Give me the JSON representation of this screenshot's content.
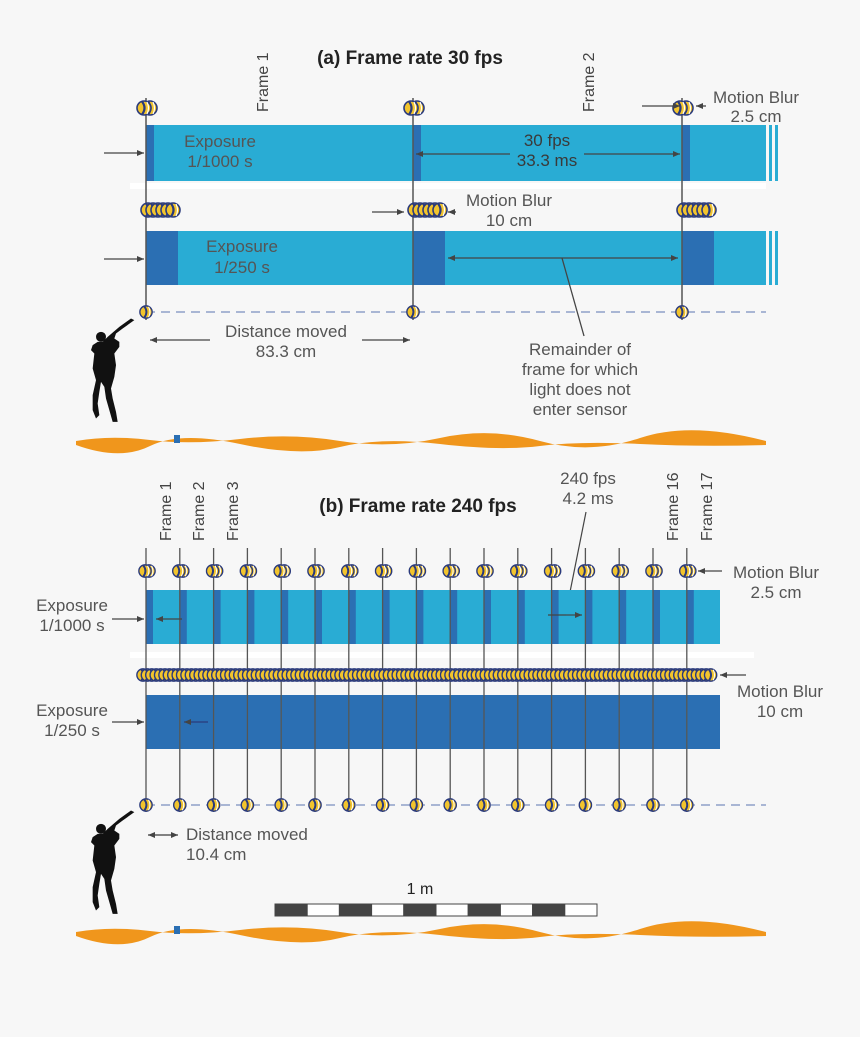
{
  "panel_a": {
    "title": "(a) Frame rate 30 fps",
    "frame_labels": [
      "Frame 1",
      "Frame 2"
    ],
    "motion_blur_1": [
      "Motion Blur",
      "2.5 cm"
    ],
    "exposure_1": [
      "Exposure",
      "1/1000 s"
    ],
    "interval": [
      "30 fps",
      "33.3 ms"
    ],
    "motion_blur_2": [
      "Motion Blur",
      "10 cm"
    ],
    "exposure_2": [
      "Exposure",
      "1/250 s"
    ],
    "distance": [
      "Distance moved",
      "83.3 cm"
    ],
    "remainder": [
      "Remainder of",
      "frame for which",
      "light does not",
      "enter sensor"
    ]
  },
  "panel_b": {
    "title": "(b) Frame rate 240 fps",
    "frame_labels": [
      "Frame 1",
      "Frame 2",
      "Frame 3",
      "Frame 16",
      "Frame 17"
    ],
    "interval": [
      "240 fps",
      "4.2 ms"
    ],
    "motion_blur_1": [
      "Motion Blur",
      "2.5 cm"
    ],
    "exposure_1": [
      "Exposure",
      "1/1000 s"
    ],
    "motion_blur_2": [
      "Motion Blur",
      "10 cm"
    ],
    "exposure_2": [
      "Exposure",
      "1/250 s"
    ],
    "distance": [
      "Distance moved",
      "10.4 cm"
    ],
    "scale_label": "1 m"
  },
  "colors": {
    "bar_light": "#29acd4",
    "bar_dark": "#2b6fb3",
    "ground": "#f0961c",
    "ball_yellow": "#f2c42d",
    "ball_navy": "#2a3a7c"
  }
}
